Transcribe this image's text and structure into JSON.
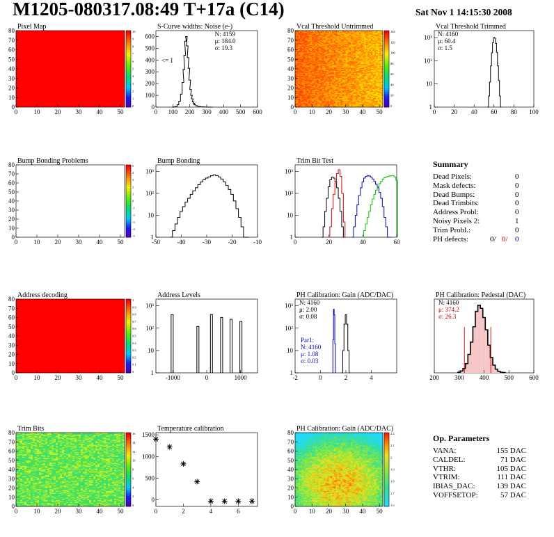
{
  "header": {
    "title": "M1205-080317.08:49 T+17a (C14)",
    "date": "Sat Nov  1 14:15:30 2008"
  },
  "chart_data": [
    {
      "id": "pixel-map",
      "type": "heatmap",
      "title": "Pixel Map",
      "xlim": [
        0,
        52
      ],
      "ylim": [
        0,
        80
      ],
      "xticks": [
        "0",
        "10",
        "20",
        "30",
        "40",
        "50"
      ],
      "yticks": [
        "0",
        "10",
        "20",
        "30",
        "40",
        "50",
        "60",
        "70",
        "80"
      ],
      "palette": "flat",
      "zticks": [
        "10",
        "9",
        "8",
        "7",
        "6",
        "5",
        "4",
        "3",
        "2",
        "1",
        "0"
      ]
    },
    {
      "id": "scurve",
      "type": "histogram",
      "title": "S-Curve widths: Noise (e-)",
      "xlim": [
        0,
        600
      ],
      "ylim": [
        0,
        650
      ],
      "log": false,
      "xticks": [
        "0",
        "100",
        "200",
        "300",
        "400",
        "500",
        "600"
      ],
      "yticks": [
        "0",
        "100",
        "200",
        "300",
        "400",
        "500",
        "600"
      ],
      "stats": [
        "N: 4159",
        "μ: 184.0",
        "σ: 19.3"
      ],
      "annotation": "<= 1",
      "series": [
        {
          "color": "#000",
          "x": [
            100,
            110,
            120,
            130,
            140,
            150,
            160,
            165,
            170,
            175,
            180,
            185,
            190,
            195,
            200,
            205,
            210,
            215,
            220,
            225,
            230,
            240,
            250,
            260,
            270,
            280,
            290,
            300,
            310,
            320,
            330
          ],
          "values": [
            0,
            2,
            6,
            20,
            50,
            110,
            210,
            320,
            440,
            560,
            600,
            520,
            420,
            330,
            230,
            150,
            100,
            70,
            45,
            30,
            20,
            12,
            8,
            5,
            3,
            2,
            1,
            1,
            0,
            0,
            0
          ]
        }
      ]
    },
    {
      "id": "vcal-untrimmed",
      "type": "heatmap",
      "title": "Vcal Threshold Untrimmed",
      "xlim": [
        0,
        52
      ],
      "ylim": [
        0,
        80
      ],
      "xticks": [
        "0",
        "10",
        "20",
        "30",
        "40",
        "50"
      ],
      "yticks": [
        "0",
        "10",
        "20",
        "30",
        "40",
        "50",
        "60",
        "70",
        "80"
      ],
      "palette": "orange",
      "zticks": [
        "140",
        "120",
        "100",
        "80",
        "60",
        "40",
        "20",
        "0"
      ]
    },
    {
      "id": "vcal-trimmed",
      "type": "histogram",
      "title": "Vcal Threshold Trimmed",
      "xlim": [
        0,
        100
      ],
      "log": true,
      "xticks": [
        "0",
        "20",
        "40",
        "60",
        "80",
        "100"
      ],
      "yticks": [
        "1",
        "10",
        "10²",
        "10³"
      ],
      "stats": [
        "N: 4160",
        "μ: 60.4",
        "σ: 1.5"
      ],
      "series": [
        {
          "color": "#000",
          "x": [
            54,
            55,
            56,
            57,
            58,
            59,
            60,
            61,
            62,
            63,
            64,
            65,
            66,
            67
          ],
          "values": [
            1,
            3,
            12,
            60,
            220,
            600,
            1000,
            950,
            560,
            230,
            60,
            14,
            3,
            1
          ]
        }
      ]
    },
    {
      "id": "bump-problems",
      "type": "heatmap",
      "title": "Bump Bonding Problems",
      "xlim": [
        0,
        52
      ],
      "ylim": [
        0,
        80
      ],
      "xticks": [
        "0",
        "10",
        "20",
        "30",
        "40",
        "50"
      ],
      "yticks": [
        "0",
        "10",
        "20",
        "30",
        "40",
        "50",
        "60",
        "70",
        "80"
      ],
      "palette": "empty",
      "zticks": [
        "5",
        "4",
        "3",
        "2",
        "1",
        "0",
        "-1",
        "-2",
        "-3",
        "-4",
        "-5"
      ]
    },
    {
      "id": "bump-bonding",
      "type": "histogram",
      "title": "Bump Bonding",
      "xlim": [
        -50,
        -10
      ],
      "log": true,
      "xticks": [
        "-50",
        "-40",
        "-30",
        "-20",
        "-10"
      ],
      "yticks": [
        "1",
        "10",
        "10²",
        "10³"
      ],
      "stats": [],
      "series": [
        {
          "color": "#000",
          "x": [
            -44,
            -43,
            -42,
            -41,
            -40,
            -39,
            -38,
            -37,
            -36,
            -35,
            -34,
            -33,
            -32,
            -31,
            -30,
            -29,
            -28,
            -27,
            -26,
            -25,
            -24,
            -23,
            -22,
            -21,
            -20,
            -19,
            -18,
            -17,
            -16,
            -15,
            -14
          ],
          "values": [
            1,
            2,
            4,
            8,
            15,
            25,
            40,
            60,
            90,
            130,
            180,
            250,
            330,
            420,
            500,
            560,
            640,
            700,
            650,
            560,
            450,
            330,
            230,
            150,
            90,
            45,
            20,
            8,
            3,
            1,
            0
          ]
        }
      ]
    },
    {
      "id": "trim-bit-test",
      "type": "histogram",
      "title": "Trim Bit Test",
      "xlim": [
        0,
        60
      ],
      "log": true,
      "xticks": [
        "0",
        "20",
        "40",
        "60"
      ],
      "yticks": [
        "1",
        "10",
        "10²",
        "10³"
      ],
      "stats": [],
      "series": [
        {
          "color": "#000",
          "x": [
            16,
            17,
            18,
            19,
            20,
            21,
            22,
            23,
            24,
            25,
            26,
            27,
            28,
            29
          ],
          "values": [
            1,
            3,
            15,
            60,
            200,
            420,
            550,
            500,
            350,
            180,
            60,
            15,
            3,
            1
          ]
        },
        {
          "color": "#e00000",
          "x": [
            20,
            21,
            22,
            23,
            24,
            25,
            26,
            27,
            28,
            29
          ],
          "values": [
            1,
            3,
            20,
            90,
            300,
            800,
            1200,
            600,
            100,
            5
          ]
        },
        {
          "color": "#0000cc",
          "x": [
            34,
            35,
            36,
            37,
            38,
            39,
            40,
            41,
            42,
            43,
            44,
            45,
            46,
            47,
            48,
            49,
            50,
            51,
            52,
            53,
            54,
            55,
            56
          ],
          "values": [
            1,
            3,
            10,
            30,
            80,
            180,
            330,
            500,
            600,
            650,
            620,
            550,
            450,
            350,
            260,
            180,
            110,
            60,
            25,
            8,
            3,
            1,
            1
          ]
        },
        {
          "color": "#00cc00",
          "x": [
            40,
            41,
            42,
            43,
            44,
            45,
            46,
            47,
            48,
            49,
            50,
            51,
            52,
            53,
            54,
            55,
            56,
            57,
            58,
            59,
            60
          ],
          "values": [
            1,
            2,
            4,
            8,
            15,
            30,
            55,
            90,
            140,
            200,
            280,
            360,
            440,
            520,
            560,
            600,
            620,
            650,
            640,
            560,
            400
          ]
        }
      ]
    },
    {
      "id": "address-decoding",
      "type": "heatmap",
      "title": "Address decoding",
      "xlim": [
        0,
        52
      ],
      "ylim": [
        0,
        80
      ],
      "xticks": [
        "0",
        "10",
        "20",
        "30",
        "40",
        "50"
      ],
      "yticks": [
        "0",
        "10",
        "20",
        "30",
        "40",
        "50",
        "60",
        "70",
        "80"
      ],
      "palette": "flat",
      "zticks": [
        "1",
        "0.9",
        "0.8",
        "0.7",
        "0.6",
        "0.5",
        "0.4",
        "0.3",
        "0.2",
        "0.1",
        "0"
      ]
    },
    {
      "id": "address-levels",
      "type": "histogram",
      "title": "Address Levels",
      "xlim": [
        -1500,
        1500
      ],
      "log": true,
      "xticks": [
        "-1000",
        "0",
        "1000"
      ],
      "yticks": [
        "1",
        "10",
        "10²",
        "10³"
      ],
      "stats": [],
      "series": [
        {
          "color": "#000",
          "spikes": [
            [
              -1020,
              400
            ],
            [
              -260,
              120
            ],
            [
              140,
              400
            ],
            [
              440,
              300
            ],
            [
              720,
              250
            ],
            [
              1010,
              200
            ]
          ]
        }
      ]
    },
    {
      "id": "ph-gain",
      "type": "histogram",
      "title": "PH Calibration: Gain (ADC/DAC)",
      "xlim": [
        -2,
        6
      ],
      "log": true,
      "xticks": [
        "-2",
        "0",
        "2",
        "4"
      ],
      "yticks": [
        "1",
        "10",
        "10²",
        "10³"
      ],
      "stats": [
        "N: 4160",
        "μ: 2.00",
        "σ: 0.08"
      ],
      "stats2": [
        "Par1:",
        "N: 4160",
        "μ: 1.08",
        "σ: 0.03"
      ],
      "series": [
        {
          "color": "#000",
          "x": [
            1.7,
            1.8,
            1.9,
            2.0,
            2.1,
            2.2,
            2.3
          ],
          "values": [
            1,
            10,
            150,
            400,
            150,
            10,
            1
          ]
        },
        {
          "color": "#0000cc",
          "x": [
            0.95,
            1.0,
            1.05,
            1.1,
            1.15,
            1.2
          ],
          "values": [
            1,
            30,
            700,
            400,
            20,
            1
          ]
        }
      ]
    },
    {
      "id": "ph-pedestal",
      "type": "histogram",
      "title": "PH Calibration: Pedestal (DAC)",
      "xlim": [
        200,
        600
      ],
      "log": false,
      "xticks": [
        "200",
        "300",
        "400",
        "500",
        "600"
      ],
      "yticks": [],
      "stats": [
        "N: 4160",
        "μ: 374.2",
        "σ: 26.3"
      ],
      "series": [
        {
          "color": "#000",
          "x": [
            300,
            310,
            320,
            330,
            340,
            350,
            360,
            370,
            380,
            390,
            400,
            410,
            420,
            430,
            440,
            450,
            460,
            470,
            480
          ],
          "values": [
            2,
            6,
            14,
            30,
            60,
            100,
            150,
            200,
            220,
            210,
            180,
            140,
            90,
            50,
            25,
            12,
            5,
            2,
            1
          ]
        }
      ]
    },
    {
      "id": "trim-bits",
      "type": "heatmap",
      "title": "Trim Bits",
      "xlim": [
        0,
        52
      ],
      "ylim": [
        0,
        80
      ],
      "xticks": [
        "0",
        "10",
        "20",
        "30",
        "40",
        "50"
      ],
      "yticks": [
        "0",
        "10",
        "20",
        "30",
        "40",
        "50",
        "60",
        "70",
        "80"
      ],
      "palette": "green",
      "zticks": [
        "16",
        "14",
        "12",
        "10",
        "8",
        "6",
        "4",
        "2",
        "0"
      ]
    },
    {
      "id": "temperature",
      "type": "scatter",
      "title": "Temperature calibration",
      "xlim": [
        0,
        7.4
      ],
      "ylim": [
        -150,
        1550
      ],
      "xticks": [
        "0",
        "2",
        "4",
        "6"
      ],
      "yticks": [
        "0",
        "500",
        "1000",
        "1500"
      ],
      "x": [
        0,
        1,
        2,
        3,
        4,
        5,
        6,
        7
      ],
      "y": [
        1400,
        1220,
        830,
        420,
        -30,
        -30,
        -30,
        -30
      ]
    },
    {
      "id": "ph-gain-map",
      "type": "heatmap",
      "title": "PH Calibration: Gain (ADC/DAC)",
      "xlim": [
        0,
        52
      ],
      "ylim": [
        0,
        80
      ],
      "xticks": [
        "0",
        "10",
        "20",
        "30",
        "40",
        "50"
      ],
      "yticks": [
        "0",
        "10",
        "20",
        "30",
        "40",
        "50",
        "60",
        "70",
        "80"
      ],
      "palette": "gain",
      "zticks": [
        "2.2",
        "2.1",
        "2",
        "1.9",
        "1.8",
        "1.7",
        "1.6"
      ]
    }
  ],
  "summary": {
    "title": "Summary",
    "rows": [
      {
        "label": "Dead Pixels:",
        "value": "0"
      },
      {
        "label": "Mask defects:",
        "value": "0"
      },
      {
        "label": "Dead Bumps:",
        "value": "0"
      },
      {
        "label": "Dead Trimbits:",
        "value": "0"
      },
      {
        "label": "Address Probl:",
        "value": "0"
      },
      {
        "label": "Noisy Pixels 2:",
        "value": "1"
      },
      {
        "label": "Trim Probl.:",
        "value": "0"
      }
    ],
    "ph_defects": {
      "label": "PH defects:",
      "values": [
        "0/",
        "0/",
        "0"
      ],
      "colors": [
        "#000000",
        "#cc0000",
        "#0000cc"
      ]
    }
  },
  "op_parameters": {
    "title": "Op. Parameters",
    "rows": [
      {
        "label": "VANA:",
        "value": "155 DAC"
      },
      {
        "label": "CALDEL:",
        "value": "71 DAC"
      },
      {
        "label": "VTHR:",
        "value": "105 DAC"
      },
      {
        "label": "VTRIM:",
        "value": "111 DAC"
      },
      {
        "label": "IBIAS_DAC:",
        "value": "139 DAC"
      },
      {
        "label": "VOFFSETOP:",
        "value": "57 DAC"
      }
    ]
  }
}
